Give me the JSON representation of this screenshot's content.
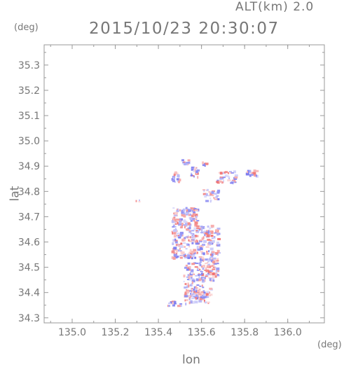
{
  "header": {
    "altitude_label": "ALT(km) 2.0",
    "datetime": "2015/10/23 20:30:07"
  },
  "chart_data": {
    "type": "heatmap",
    "title": "2015/10/23 20:30:07",
    "xlabel": "lon",
    "ylabel": "lat",
    "x_unit": "(deg)",
    "y_unit": "(deg)",
    "xlim": [
      134.87,
      136.17
    ],
    "ylim": [
      34.28,
      35.38
    ],
    "xticks": [
      135.0,
      135.2,
      135.4,
      135.6,
      135.8,
      136.0
    ],
    "xtick_labels": [
      "135.0",
      "135.2",
      "135.4",
      "135.6",
      "135.8",
      "136.0"
    ],
    "yticks": [
      34.3,
      34.4,
      34.5,
      34.6,
      34.7,
      34.8,
      34.9,
      35.0,
      35.1,
      35.2,
      35.3
    ],
    "ytick_labels": [
      "34.3",
      "34.4",
      "34.5",
      "34.6",
      "34.7",
      "34.8",
      "34.9",
      "35.0",
      "35.1",
      "35.2",
      "35.3"
    ],
    "grid": false,
    "colors": {
      "positive": "#f07070",
      "negative": "#7c7cf0",
      "axis": "#999999",
      "text": "#777777"
    },
    "clusters": [
      {
        "lon": 135.52,
        "lat": 34.92,
        "w": 0.04,
        "h": 0.02,
        "n": 12
      },
      {
        "lon": 135.61,
        "lat": 34.91,
        "w": 0.02,
        "h": 0.02,
        "n": 6
      },
      {
        "lon": 135.48,
        "lat": 34.86,
        "w": 0.04,
        "h": 0.04,
        "n": 18
      },
      {
        "lon": 135.56,
        "lat": 34.88,
        "w": 0.04,
        "h": 0.04,
        "n": 18
      },
      {
        "lon": 135.71,
        "lat": 34.86,
        "w": 0.09,
        "h": 0.05,
        "n": 40
      },
      {
        "lon": 135.83,
        "lat": 34.88,
        "w": 0.05,
        "h": 0.03,
        "n": 14
      },
      {
        "lon": 135.64,
        "lat": 34.79,
        "w": 0.08,
        "h": 0.05,
        "n": 30
      },
      {
        "lon": 135.3,
        "lat": 34.765,
        "w": 0.02,
        "h": 0.01,
        "n": 3
      },
      {
        "lon": 135.52,
        "lat": 34.64,
        "w": 0.12,
        "h": 0.2,
        "n": 260
      },
      {
        "lon": 135.63,
        "lat": 34.56,
        "w": 0.09,
        "h": 0.22,
        "n": 170
      },
      {
        "lon": 135.56,
        "lat": 34.45,
        "w": 0.09,
        "h": 0.14,
        "n": 110
      },
      {
        "lon": 135.58,
        "lat": 34.39,
        "w": 0.12,
        "h": 0.06,
        "n": 70
      },
      {
        "lon": 135.47,
        "lat": 34.36,
        "w": 0.06,
        "h": 0.02,
        "n": 14
      }
    ]
  }
}
